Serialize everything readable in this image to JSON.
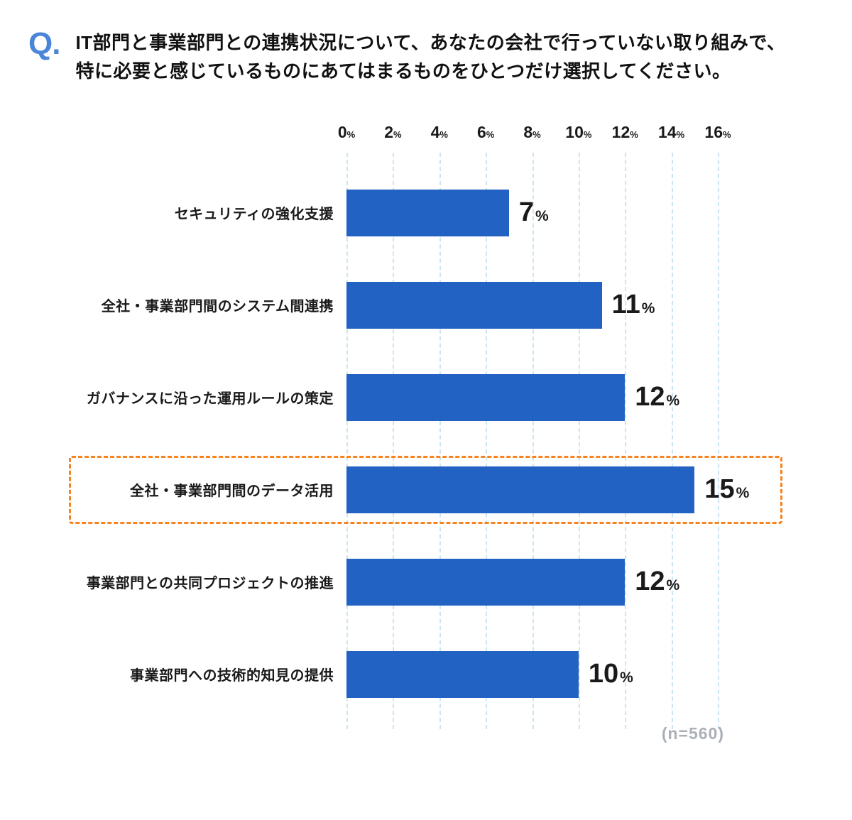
{
  "question": {
    "prefix": "Q.",
    "line1": "IT部門と事業部門との連携状況について、あなたの会社で行っていない取り組みで、",
    "line2": "特に必要と感じているものにあてはまるものをひとつだけ選択してください。"
  },
  "colors": {
    "bar": "#2262c2",
    "question_mark": "#4a85d8",
    "gridline": "#c9e6f2",
    "highlight": "#f5831f",
    "note": "#aab0b6"
  },
  "chart_data": {
    "type": "bar",
    "orientation": "horizontal",
    "categories": [
      "セキュリティの強化支援",
      "全社・事業部門間のシステム間連携",
      "ガバナンスに沿った運用ルールの策定",
      "全社・事業部門間のデータ活用",
      "事業部門との共同プロジェクトの推進",
      "事業部門への技術的知見の提供"
    ],
    "values": [
      7,
      11,
      12,
      15,
      12,
      10
    ],
    "value_suffix": "%",
    "highlighted_index": 3,
    "xlim": [
      0,
      16
    ],
    "xticks": [
      0,
      2,
      4,
      6,
      8,
      10,
      12,
      14,
      16
    ],
    "tick_suffix": "%",
    "grid": "dashed-vertical",
    "legend": "none",
    "sample_note": "(n=560)"
  }
}
